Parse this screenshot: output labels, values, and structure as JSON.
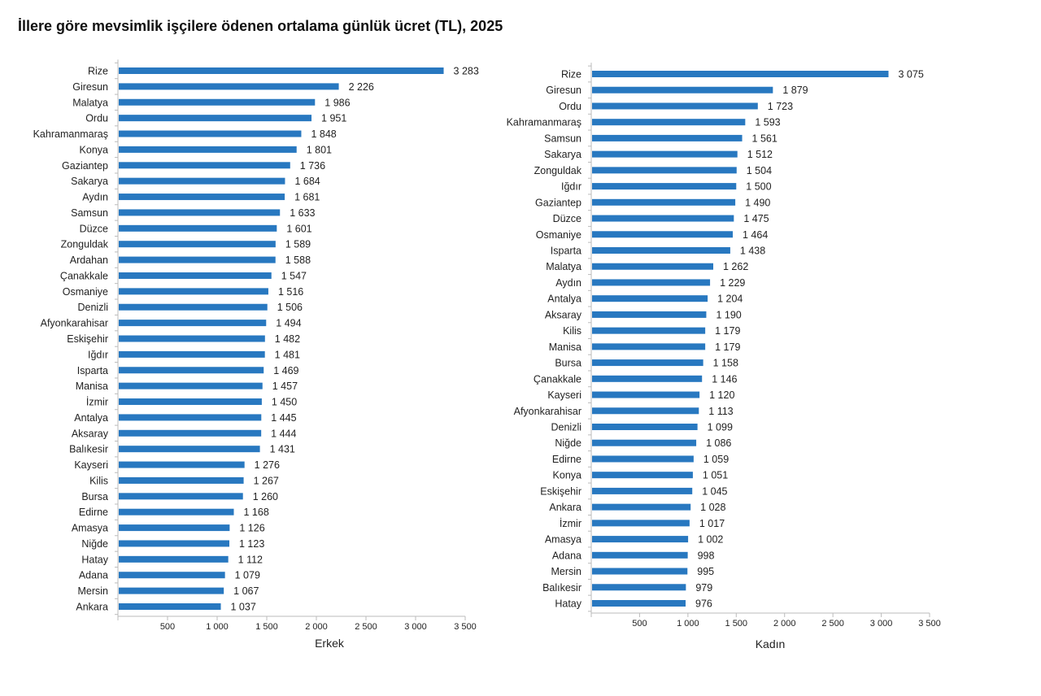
{
  "title": "İllere göre mevsimlik işçilere ödenen ortalama günlük ücret (TL), 2025",
  "colors": {
    "bar": "#2878C0",
    "axis": "#BBBBBB"
  },
  "chart_data": [
    {
      "type": "bar",
      "orientation": "horizontal",
      "xlabel": "Erkek",
      "xlim": [
        0,
        3500
      ],
      "xticks": [
        500,
        1000,
        1500,
        2000,
        2500,
        3000,
        3500
      ],
      "xtick_labels": [
        "500",
        "1 000",
        "1 500",
        "2 000",
        "2 500",
        "3 000",
        "3 500"
      ],
      "grid": false,
      "categories": [
        "Rize",
        "Giresun",
        "Malatya",
        "Ordu",
        "Kahramanmaraş",
        "Konya",
        "Gaziantep",
        "Sakarya",
        "Aydın",
        "Samsun",
        "Düzce",
        "Zonguldak",
        "Ardahan",
        "Çanakkale",
        "Osmaniye",
        "Denizli",
        "Afyonkarahisar",
        "Eskişehir",
        "Iğdır",
        "Isparta",
        "Manisa",
        "İzmir",
        "Antalya",
        "Aksaray",
        "Balıkesir",
        "Kayseri",
        "Kilis",
        "Bursa",
        "Edirne",
        "Amasya",
        "Niğde",
        "Hatay",
        "Adana",
        "Mersin",
        "Ankara"
      ],
      "values": [
        3283,
        2226,
        1986,
        1951,
        1848,
        1801,
        1736,
        1684,
        1681,
        1633,
        1601,
        1589,
        1588,
        1547,
        1516,
        1506,
        1494,
        1482,
        1481,
        1469,
        1457,
        1450,
        1445,
        1444,
        1431,
        1276,
        1267,
        1260,
        1168,
        1126,
        1123,
        1112,
        1079,
        1067,
        1037
      ],
      "value_labels": [
        "3 283",
        "2 226",
        "1 986",
        "1 951",
        "1 848",
        "1 801",
        "1 736",
        "1 684",
        "1 681",
        "1 633",
        "1 601",
        "1 589",
        "1 588",
        "1 547",
        "1 516",
        "1 506",
        "1 494",
        "1 482",
        "1 481",
        "1 469",
        "1 457",
        "1 450",
        "1 445",
        "1 444",
        "1 431",
        "1 276",
        "1 267",
        "1 260",
        "1 168",
        "1 126",
        "1 123",
        "1 112",
        "1 079",
        "1 067",
        "1 037"
      ]
    },
    {
      "type": "bar",
      "orientation": "horizontal",
      "xlabel": "Kadın",
      "xlim": [
        0,
        3500
      ],
      "xticks": [
        500,
        1000,
        1500,
        2000,
        2500,
        3000,
        3500
      ],
      "xtick_labels": [
        "500",
        "1 000",
        "1 500",
        "2 000",
        "2 500",
        "3 000",
        "3 500"
      ],
      "grid": false,
      "categories": [
        "Rize",
        "Giresun",
        "Ordu",
        "Kahramanmaraş",
        "Samsun",
        "Sakarya",
        "Zonguldak",
        "Iğdır",
        "Gaziantep",
        "Düzce",
        "Osmaniye",
        "Isparta",
        "Malatya",
        "Aydın",
        "Antalya",
        "Aksaray",
        "Kilis",
        "Manisa",
        "Bursa",
        "Çanakkale",
        "Kayseri",
        "Afyonkarahisar",
        "Denizli",
        "Niğde",
        "Edirne",
        "Konya",
        "Eskişehir",
        "Ankara",
        "İzmir",
        "Amasya",
        "Adana",
        "Mersin",
        "Balıkesir",
        "Hatay"
      ],
      "values": [
        3075,
        1879,
        1723,
        1593,
        1561,
        1512,
        1504,
        1500,
        1490,
        1475,
        1464,
        1438,
        1262,
        1229,
        1204,
        1190,
        1179,
        1179,
        1158,
        1146,
        1120,
        1113,
        1099,
        1086,
        1059,
        1051,
        1045,
        1028,
        1017,
        1002,
        998,
        995,
        979,
        976
      ],
      "value_labels": [
        "3 075",
        "1 879",
        "1 723",
        "1 593",
        "1 561",
        "1 512",
        "1 504",
        "1 500",
        "1 490",
        "1 475",
        "1 464",
        "1 438",
        "1 262",
        "1 229",
        "1 204",
        "1 190",
        "1 179",
        "1 179",
        "1 158",
        "1 146",
        "1 120",
        "1 113",
        "1 099",
        "1 086",
        "1 059",
        "1 051",
        "1 045",
        "1 028",
        "1 017",
        "1 002",
        "998",
        "995",
        "979",
        "976"
      ]
    }
  ]
}
